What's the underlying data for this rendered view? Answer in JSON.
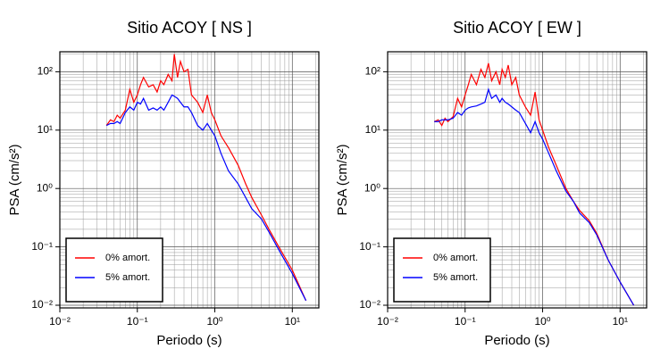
{
  "chart_data": [
    {
      "type": "line",
      "title": "Sitio ACOY [ NS ]",
      "xlabel": "Periodo (s)",
      "ylabel": "PSA (cm/s²)",
      "xlog": true,
      "ylog": true,
      "grid": true,
      "legend": "lower left",
      "xlim": [
        0.01,
        22
      ],
      "ylim": [
        0.009,
        220
      ],
      "xticks": [
        {
          "value": 0.01,
          "label": "10⁻²"
        },
        {
          "value": 0.1,
          "label": "10⁻¹"
        },
        {
          "value": 1,
          "label": "10⁰"
        },
        {
          "value": 10,
          "label": "10¹"
        }
      ],
      "yticks": [
        {
          "value": 0.01,
          "label": "10⁻²"
        },
        {
          "value": 0.1,
          "label": "10⁻¹"
        },
        {
          "value": 1,
          "label": "10⁰"
        },
        {
          "value": 10,
          "label": "10¹"
        },
        {
          "value": 100,
          "label": "10²"
        }
      ],
      "xminorticks": [
        0.02,
        0.03,
        0.04,
        0.05,
        0.06,
        0.07,
        0.08,
        0.09,
        0.2,
        0.3,
        0.4,
        0.5,
        0.6,
        0.7,
        0.8,
        0.9,
        2,
        3,
        4,
        5,
        6,
        7,
        8,
        9,
        20
      ],
      "yminorticks": [
        0.02,
        0.03,
        0.04,
        0.05,
        0.06,
        0.07,
        0.08,
        0.09,
        0.2,
        0.3,
        0.4,
        0.5,
        0.6,
        0.7,
        0.8,
        0.9,
        2,
        3,
        4,
        5,
        6,
        7,
        8,
        9,
        20,
        30,
        40,
        50,
        60,
        70,
        80,
        90,
        200
      ],
      "x": [
        0.04,
        0.045,
        0.05,
        0.055,
        0.06,
        0.07,
        0.08,
        0.09,
        0.1,
        0.11,
        0.12,
        0.14,
        0.16,
        0.18,
        0.2,
        0.22,
        0.25,
        0.28,
        0.3,
        0.33,
        0.36,
        0.4,
        0.45,
        0.5,
        0.6,
        0.7,
        0.8,
        0.9,
        1.0,
        1.2,
        1.5,
        2,
        2.5,
        3,
        4,
        5,
        7,
        10,
        15
      ],
      "series": [
        {
          "name": "0% amort.",
          "color": "#ff0000",
          "values": [
            12,
            15,
            14,
            18,
            16,
            22,
            50,
            30,
            40,
            60,
            80,
            55,
            60,
            45,
            70,
            60,
            90,
            70,
            200,
            80,
            150,
            100,
            110,
            40,
            30,
            20,
            40,
            20,
            15,
            8,
            5,
            2.5,
            1.2,
            0.7,
            0.35,
            0.2,
            0.09,
            0.04,
            0.012
          ]
        },
        {
          "name": "5% amort.",
          "color": "#0000ff",
          "values": [
            12,
            13,
            13,
            14,
            13,
            20,
            25,
            22,
            30,
            28,
            35,
            22,
            24,
            22,
            25,
            22,
            30,
            40,
            38,
            35,
            30,
            25,
            25,
            20,
            12,
            10,
            13,
            10,
            8,
            4,
            2,
            1.2,
            0.7,
            0.45,
            0.3,
            0.18,
            0.08,
            0.035,
            0.012
          ]
        }
      ]
    },
    {
      "type": "line",
      "title": "Sitio ACOY [ EW ]",
      "xlabel": "Periodo (s)",
      "ylabel": "PSA (cm/s²)",
      "xlog": true,
      "ylog": true,
      "grid": true,
      "legend": "lower left",
      "xlim": [
        0.01,
        22
      ],
      "ylim": [
        0.009,
        220
      ],
      "xticks": [
        {
          "value": 0.01,
          "label": "10⁻²"
        },
        {
          "value": 0.1,
          "label": "10⁻¹"
        },
        {
          "value": 1,
          "label": "10⁰"
        },
        {
          "value": 10,
          "label": "10¹"
        }
      ],
      "yticks": [
        {
          "value": 0.01,
          "label": "10⁻²"
        },
        {
          "value": 0.1,
          "label": "10⁻¹"
        },
        {
          "value": 1,
          "label": "10⁰"
        },
        {
          "value": 10,
          "label": "10¹"
        },
        {
          "value": 100,
          "label": "10²"
        }
      ],
      "xminorticks": [
        0.02,
        0.03,
        0.04,
        0.05,
        0.06,
        0.07,
        0.08,
        0.09,
        0.2,
        0.3,
        0.4,
        0.5,
        0.6,
        0.7,
        0.8,
        0.9,
        2,
        3,
        4,
        5,
        6,
        7,
        8,
        9,
        20
      ],
      "yminorticks": [
        0.02,
        0.03,
        0.04,
        0.05,
        0.06,
        0.07,
        0.08,
        0.09,
        0.2,
        0.3,
        0.4,
        0.5,
        0.6,
        0.7,
        0.8,
        0.9,
        2,
        3,
        4,
        5,
        6,
        7,
        8,
        9,
        20,
        30,
        40,
        50,
        60,
        70,
        80,
        90,
        200
      ],
      "x": [
        0.04,
        0.045,
        0.05,
        0.055,
        0.06,
        0.07,
        0.08,
        0.09,
        0.1,
        0.11,
        0.12,
        0.14,
        0.16,
        0.18,
        0.2,
        0.22,
        0.25,
        0.28,
        0.3,
        0.33,
        0.36,
        0.4,
        0.45,
        0.5,
        0.6,
        0.7,
        0.8,
        0.9,
        1.0,
        1.2,
        1.5,
        2,
        2.5,
        3,
        4,
        5,
        7,
        10,
        15
      ],
      "series": [
        {
          "name": "0% amort.",
          "color": "#ff0000",
          "values": [
            14,
            15,
            12,
            16,
            14,
            17,
            35,
            25,
            40,
            60,
            90,
            60,
            110,
            80,
            140,
            70,
            100,
            60,
            110,
            80,
            130,
            60,
            80,
            40,
            25,
            18,
            45,
            15,
            10,
            5,
            2.5,
            1.0,
            0.6,
            0.42,
            0.28,
            0.17,
            0.06,
            0.025,
            0.01
          ]
        },
        {
          "name": "5% amort.",
          "color": "#0000ff",
          "values": [
            14,
            14,
            15,
            15,
            15,
            16,
            20,
            18,
            22,
            24,
            25,
            26,
            28,
            30,
            50,
            35,
            40,
            30,
            35,
            30,
            28,
            25,
            22,
            20,
            13,
            9,
            14,
            9,
            7,
            4,
            2,
            0.9,
            0.6,
            0.38,
            0.26,
            0.16,
            0.06,
            0.025,
            0.01
          ]
        }
      ]
    }
  ]
}
